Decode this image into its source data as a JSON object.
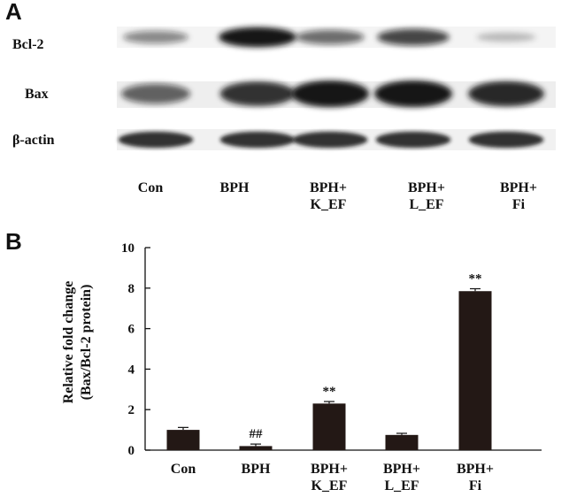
{
  "panels": {
    "a": "A",
    "b": "B"
  },
  "blot": {
    "rows": [
      {
        "label": "Bcl-2",
        "intensity": [
          0.35,
          1.0,
          0.5,
          0.7,
          0.05
        ]
      },
      {
        "label": "Bax",
        "intensity": [
          0.55,
          0.85,
          1.0,
          1.0,
          0.9
        ]
      },
      {
        "label": "β-actin",
        "intensity": [
          0.85,
          0.85,
          0.85,
          0.85,
          0.85
        ]
      }
    ],
    "lanes": [
      {
        "line1": "Con",
        "line2": ""
      },
      {
        "line1": "BPH",
        "line2": ""
      },
      {
        "line1": "BPH+",
        "line2": "K_EF"
      },
      {
        "line1": "BPH+",
        "line2": "L_EF"
      },
      {
        "line1": "BPH+",
        "line2": "Fi"
      }
    ]
  },
  "chart_data": {
    "type": "bar",
    "categories": [
      {
        "line1": "Con",
        "line2": ""
      },
      {
        "line1": "BPH",
        "line2": ""
      },
      {
        "line1": "BPH+",
        "line2": "K_EF"
      },
      {
        "line1": "BPH+",
        "line2": "L_EF"
      },
      {
        "line1": "BPH+",
        "line2": "Fi"
      }
    ],
    "values": [
      1.0,
      0.2,
      2.3,
      0.75,
      7.85
    ],
    "errors": [
      0.12,
      0.1,
      0.1,
      0.08,
      0.12
    ],
    "annotations": [
      "",
      "##",
      "**",
      "",
      "**"
    ],
    "ylabel_line1": "Relative fold change",
    "ylabel_line2": "(Bax/Bcl-2 protein)",
    "ylim": [
      0,
      10
    ],
    "yticks": [
      0,
      2,
      4,
      6,
      8,
      10
    ],
    "bar_color": "#231815",
    "grid": false
  }
}
